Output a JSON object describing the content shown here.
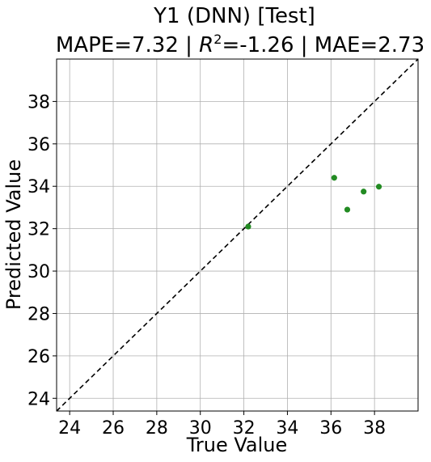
{
  "chart_data": {
    "type": "scatter",
    "title_line1": "Y1 (DNN) [Test]",
    "title_mape": "MAPE=7.32 | ",
    "title_r": "R",
    "title_r_sup": "2",
    "title_rest": "=-1.26 | MAE=2.73",
    "xlabel": "True Value",
    "ylabel": "Predicted Value",
    "xlim": [
      23.4,
      40.0
    ],
    "ylim": [
      23.4,
      40.0
    ],
    "xticks": [
      24,
      26,
      28,
      30,
      32,
      34,
      36,
      38
    ],
    "yticks": [
      24,
      26,
      28,
      30,
      32,
      34,
      36,
      38
    ],
    "grid": true,
    "reference_line": "y = x",
    "point_color": "#228b22",
    "line_color": "#000000",
    "points": [
      {
        "x": 32.2,
        "y": 32.1
      },
      {
        "x": 36.15,
        "y": 34.4
      },
      {
        "x": 36.75,
        "y": 32.9
      },
      {
        "x": 37.5,
        "y": 33.75
      },
      {
        "x": 38.2,
        "y": 33.98
      }
    ]
  }
}
